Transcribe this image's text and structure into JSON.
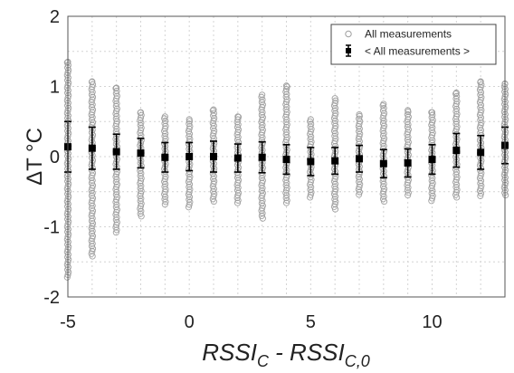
{
  "chart_data": {
    "type": "scatter",
    "title": "",
    "xlabel": {
      "main": "RSSI",
      "sub1": "C",
      "sep": " - ",
      "main2": "RSSI",
      "sub2": "C,0"
    },
    "ylabel": "ΔT °C",
    "xlim": [
      -5,
      13
    ],
    "ylim": [
      -2,
      2
    ],
    "xticks": [
      -5,
      0,
      5,
      10
    ],
    "yticks": [
      2,
      1,
      0,
      -1,
      -2
    ],
    "grid": "dotted",
    "legend_position": "top-right",
    "series": [
      {
        "name": "All measurements",
        "marker": "open-circle",
        "color": "#a0a0a0",
        "columns": [
          {
            "x": -5,
            "min": -1.72,
            "max": 1.35
          },
          {
            "x": -4,
            "min": -1.42,
            "max": 1.07
          },
          {
            "x": -3,
            "min": -1.08,
            "max": 0.98
          },
          {
            "x": -2,
            "min": -0.85,
            "max": 0.63
          },
          {
            "x": -1,
            "min": -0.68,
            "max": 0.57
          },
          {
            "x": 0,
            "min": -0.72,
            "max": 0.53
          },
          {
            "x": 1,
            "min": -0.64,
            "max": 0.67
          },
          {
            "x": 2,
            "min": -0.66,
            "max": 0.57
          },
          {
            "x": 3,
            "min": -0.88,
            "max": 0.88
          },
          {
            "x": 4,
            "min": -0.66,
            "max": 1.01
          },
          {
            "x": 5,
            "min": -0.58,
            "max": 0.53
          },
          {
            "x": 6,
            "min": -0.75,
            "max": 0.83
          },
          {
            "x": 7,
            "min": -0.54,
            "max": 0.6
          },
          {
            "x": 8,
            "min": -0.64,
            "max": 0.75
          },
          {
            "x": 9,
            "min": -0.55,
            "max": 0.66
          },
          {
            "x": 10,
            "min": -0.63,
            "max": 0.63
          },
          {
            "x": 11,
            "min": -0.58,
            "max": 0.91
          },
          {
            "x": 12,
            "min": -0.56,
            "max": 1.07
          },
          {
            "x": 13,
            "min": -0.55,
            "max": 1.04
          }
        ]
      },
      {
        "name": "< All measurements >",
        "marker": "filled-square-errorbar",
        "color": "#000000",
        "points": [
          {
            "x": -5,
            "y": 0.14,
            "err": 0.36
          },
          {
            "x": -4,
            "y": 0.12,
            "err": 0.3
          },
          {
            "x": -3,
            "y": 0.07,
            "err": 0.25
          },
          {
            "x": -2,
            "y": 0.05,
            "err": 0.21
          },
          {
            "x": -1,
            "y": -0.01,
            "err": 0.21
          },
          {
            "x": 0,
            "y": 0.0,
            "err": 0.2
          },
          {
            "x": 1,
            "y": 0.0,
            "err": 0.22
          },
          {
            "x": 2,
            "y": -0.02,
            "err": 0.2
          },
          {
            "x": 3,
            "y": -0.01,
            "err": 0.22
          },
          {
            "x": 4,
            "y": -0.04,
            "err": 0.21
          },
          {
            "x": 5,
            "y": -0.07,
            "err": 0.2
          },
          {
            "x": 6,
            "y": -0.06,
            "err": 0.19
          },
          {
            "x": 7,
            "y": -0.03,
            "err": 0.19
          },
          {
            "x": 8,
            "y": -0.1,
            "err": 0.2
          },
          {
            "x": 9,
            "y": -0.09,
            "err": 0.2
          },
          {
            "x": 10,
            "y": -0.04,
            "err": 0.21
          },
          {
            "x": 11,
            "y": 0.09,
            "err": 0.24
          },
          {
            "x": 12,
            "y": 0.06,
            "err": 0.24
          },
          {
            "x": 13,
            "y": 0.16,
            "err": 0.26
          }
        ]
      }
    ]
  }
}
